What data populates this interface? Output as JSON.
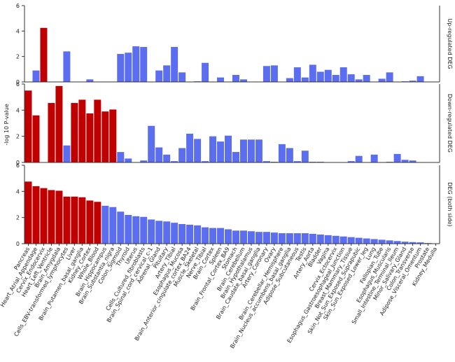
{
  "chart_data": {
    "type": "bar",
    "ylabel": "-log 10 P-value",
    "categories": [
      "Pancreas",
      "Heart_Atrial_Appendage",
      "Cervix_Endocervix",
      "Heart_Left_Ventricle",
      "Brain_Amygdala",
      "Cells_EBV-transformed_lymphocytes",
      "Liver",
      "Brain_Putamen_basal_ganglia",
      "Kidney_Cortex",
      "Whole_Blood",
      "Brain_Hippocampus",
      "Brain_Substantia_nigra",
      "Colon_Sigmoid",
      "Thyroid",
      "Uterus",
      "Cells_Cultured_fibroblasts",
      "Brain_Spinal_cord_cervical_c-1",
      "Adrenal_Gland",
      "Pituitary",
      "Artery_Tibial",
      "Esophagus_Mucosa",
      "Brain_Anterior_cingulate_cortex_BA24",
      "Muscle_Skeletal",
      "Nerve_Tibial",
      "Brain_Cortex",
      "Spleen",
      "Brain_Frontal_Cortex_BA9",
      "Stomach",
      "Brain_Cerebellum",
      "Brain_Hypothalamus",
      "Brain_Caudate_basal_ganglia",
      "Artery_Coronary",
      "Ovary",
      "Brain_Cerebellar_Hemisphere",
      "Brain_Nucleus_accumbens_basal_ganglia",
      "Adipose_Subcutaneous",
      "Testis",
      "Artery_Aorta",
      "Bladder",
      "Vagina",
      "Cervix_Ectocervix",
      "Esophagus_Gastroesophageal_Junction",
      "Breast_Mammary_Tissue",
      "Skin_Not_Sun_Exposed_Suprapubic",
      "Skin_Sun_Exposed_Lower_leg",
      "Lung",
      "Fallopian_Tube",
      "Esophagus_Muscularis",
      "Small_Intestine_Terminal_Ileum",
      "Minor_Salivary_Gland",
      "Colon_Transverse",
      "Adipose_Visceral_Omentum",
      "Prostate",
      "Kidney_Medulla"
    ],
    "panels": [
      {
        "title": "Up-regulated DEG",
        "ylim": [
          0,
          6
        ],
        "yticks": [
          0,
          2,
          4,
          6
        ],
        "values": [
          0,
          0.9,
          4.25,
          0,
          0,
          2.4,
          0,
          0,
          0.2,
          0,
          0,
          0,
          2.2,
          2.3,
          2.8,
          2.75,
          0,
          0.9,
          1.3,
          2.75,
          0.75,
          0,
          0.05,
          1.5,
          0,
          0.35,
          0,
          0.55,
          0.2,
          0,
          0,
          1.25,
          1.3,
          0,
          0.3,
          1.15,
          0.35,
          1.35,
          0.8,
          0.95,
          0.55,
          1.15,
          0.6,
          0.2,
          0.55,
          0,
          0.25,
          0.75,
          0,
          0.05,
          0.1,
          0.45,
          0,
          0
        ],
        "colors": [
          "#5c6ef0",
          "#5c6ef0",
          "#c00000",
          "#5c6ef0",
          "#5c6ef0",
          "#5c6ef0",
          "#5c6ef0",
          "#5c6ef0",
          "#5c6ef0",
          "#5c6ef0",
          "#5c6ef0",
          "#5c6ef0",
          "#5c6ef0",
          "#5c6ef0",
          "#5c6ef0",
          "#5c6ef0",
          "#5c6ef0",
          "#5c6ef0",
          "#5c6ef0",
          "#5c6ef0",
          "#5c6ef0",
          "#5c6ef0",
          "#5c6ef0",
          "#5c6ef0",
          "#5c6ef0",
          "#5c6ef0",
          "#5c6ef0",
          "#5c6ef0",
          "#5c6ef0",
          "#5c6ef0",
          "#5c6ef0",
          "#5c6ef0",
          "#5c6ef0",
          "#5c6ef0",
          "#5c6ef0",
          "#5c6ef0",
          "#5c6ef0",
          "#5c6ef0",
          "#5c6ef0",
          "#5c6ef0",
          "#5c6ef0",
          "#5c6ef0",
          "#5c6ef0",
          "#5c6ef0",
          "#5c6ef0",
          "#5c6ef0",
          "#5c6ef0",
          "#5c6ef0",
          "#5c6ef0",
          "#5c6ef0",
          "#5c6ef0",
          "#5c6ef0",
          "#5c6ef0",
          "#5c6ef0"
        ]
      },
      {
        "title": "Down-regulated DEG",
        "ylim": [
          0,
          6
        ],
        "yticks": [
          0,
          2,
          4,
          6
        ],
        "values": [
          5.5,
          3.6,
          0,
          4.55,
          5.85,
          1.3,
          4.55,
          4.8,
          3.75,
          4.8,
          3.9,
          4.05,
          0.8,
          0.3,
          0,
          0.15,
          2.8,
          1.15,
          0.6,
          0.1,
          1.1,
          2.2,
          1.8,
          0.1,
          2.0,
          1.6,
          2.05,
          0.8,
          1.75,
          1.75,
          1.75,
          0.1,
          0.05,
          1.4,
          1.1,
          0.1,
          0.9,
          0.05,
          0.05,
          0.02,
          0,
          0,
          0.1,
          0.5,
          0,
          0.6,
          0,
          0.05,
          0.65,
          0.2,
          0.15,
          0,
          0,
          0
        ],
        "colors": [
          "#c00000",
          "#c00000",
          "#c00000",
          "#c00000",
          "#c00000",
          "#5c6ef0",
          "#c00000",
          "#c00000",
          "#c00000",
          "#c00000",
          "#c00000",
          "#c00000",
          "#5c6ef0",
          "#5c6ef0",
          "#5c6ef0",
          "#5c6ef0",
          "#5c6ef0",
          "#5c6ef0",
          "#5c6ef0",
          "#5c6ef0",
          "#5c6ef0",
          "#5c6ef0",
          "#5c6ef0",
          "#5c6ef0",
          "#5c6ef0",
          "#5c6ef0",
          "#5c6ef0",
          "#5c6ef0",
          "#5c6ef0",
          "#5c6ef0",
          "#5c6ef0",
          "#5c6ef0",
          "#5c6ef0",
          "#5c6ef0",
          "#5c6ef0",
          "#5c6ef0",
          "#5c6ef0",
          "#5c6ef0",
          "#5c6ef0",
          "#5c6ef0",
          "#5c6ef0",
          "#5c6ef0",
          "#5c6ef0",
          "#5c6ef0",
          "#5c6ef0",
          "#5c6ef0",
          "#5c6ef0",
          "#5c6ef0",
          "#5c6ef0",
          "#5c6ef0",
          "#5c6ef0",
          "#5c6ef0",
          "#5c6ef0",
          "#5c6ef0"
        ]
      },
      {
        "title": "DEG (both side)",
        "ylim": [
          0,
          6
        ],
        "yticks": [
          0,
          2,
          4,
          6
        ],
        "values": [
          4.75,
          4.4,
          4.25,
          4.1,
          4.05,
          3.6,
          3.6,
          3.55,
          3.3,
          3.2,
          2.9,
          2.8,
          2.45,
          2.2,
          2.1,
          2.05,
          1.85,
          1.75,
          1.7,
          1.6,
          1.5,
          1.45,
          1.4,
          1.25,
          1.2,
          1.2,
          1.1,
          1.0,
          1.0,
          0.95,
          0.9,
          0.9,
          0.85,
          0.8,
          0.8,
          0.8,
          0.8,
          0.75,
          0.7,
          0.65,
          0.6,
          0.55,
          0.5,
          0.45,
          0.4,
          0.35,
          0.3,
          0.25,
          0.2,
          0.15,
          0.12,
          0.1,
          0.05,
          0.02
        ],
        "colors": [
          "#c00000",
          "#c00000",
          "#c00000",
          "#c00000",
          "#c00000",
          "#c00000",
          "#c00000",
          "#c00000",
          "#c00000",
          "#c00000",
          "#5c6ef0",
          "#5c6ef0",
          "#5c6ef0",
          "#5c6ef0",
          "#5c6ef0",
          "#5c6ef0",
          "#5c6ef0",
          "#5c6ef0",
          "#5c6ef0",
          "#5c6ef0",
          "#5c6ef0",
          "#5c6ef0",
          "#5c6ef0",
          "#5c6ef0",
          "#5c6ef0",
          "#5c6ef0",
          "#5c6ef0",
          "#5c6ef0",
          "#5c6ef0",
          "#5c6ef0",
          "#5c6ef0",
          "#5c6ef0",
          "#5c6ef0",
          "#5c6ef0",
          "#5c6ef0",
          "#5c6ef0",
          "#5c6ef0",
          "#5c6ef0",
          "#5c6ef0",
          "#5c6ef0",
          "#5c6ef0",
          "#5c6ef0",
          "#5c6ef0",
          "#5c6ef0",
          "#5c6ef0",
          "#5c6ef0",
          "#5c6ef0",
          "#5c6ef0",
          "#5c6ef0",
          "#5c6ef0",
          "#5c6ef0",
          "#5c6ef0",
          "#5c6ef0",
          "#5c6ef0"
        ]
      }
    ]
  }
}
